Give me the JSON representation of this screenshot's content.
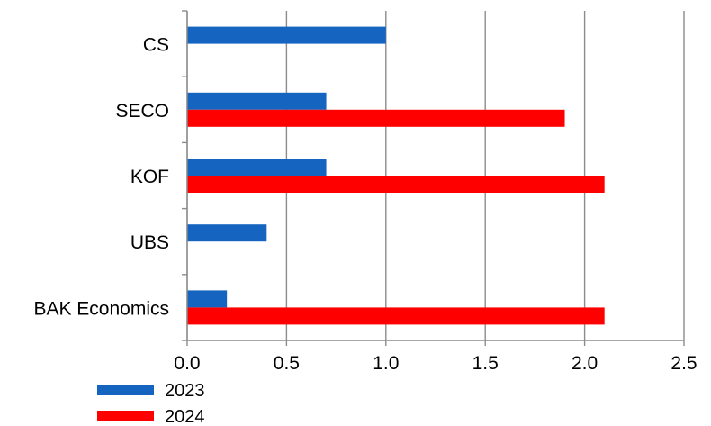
{
  "chart_data": {
    "type": "bar",
    "orientation": "horizontal",
    "categories": [
      "CS",
      "SECO",
      "KOF",
      "UBS",
      "BAK Economics"
    ],
    "series": [
      {
        "name": "2023",
        "color": "#1565c0",
        "values": [
          1.0,
          0.7,
          0.7,
          0.4,
          0.2
        ]
      },
      {
        "name": "2024",
        "color": "#ff0000",
        "values": [
          null,
          1.9,
          2.1,
          null,
          2.1
        ]
      }
    ],
    "xlim": [
      0.0,
      2.5
    ],
    "xticks": [
      "0.0",
      "0.5",
      "1.0",
      "1.5",
      "2.0",
      "2.5"
    ],
    "title": "",
    "xlabel": "",
    "ylabel": "",
    "grid": "vertical",
    "legend_position": "bottom-left"
  }
}
